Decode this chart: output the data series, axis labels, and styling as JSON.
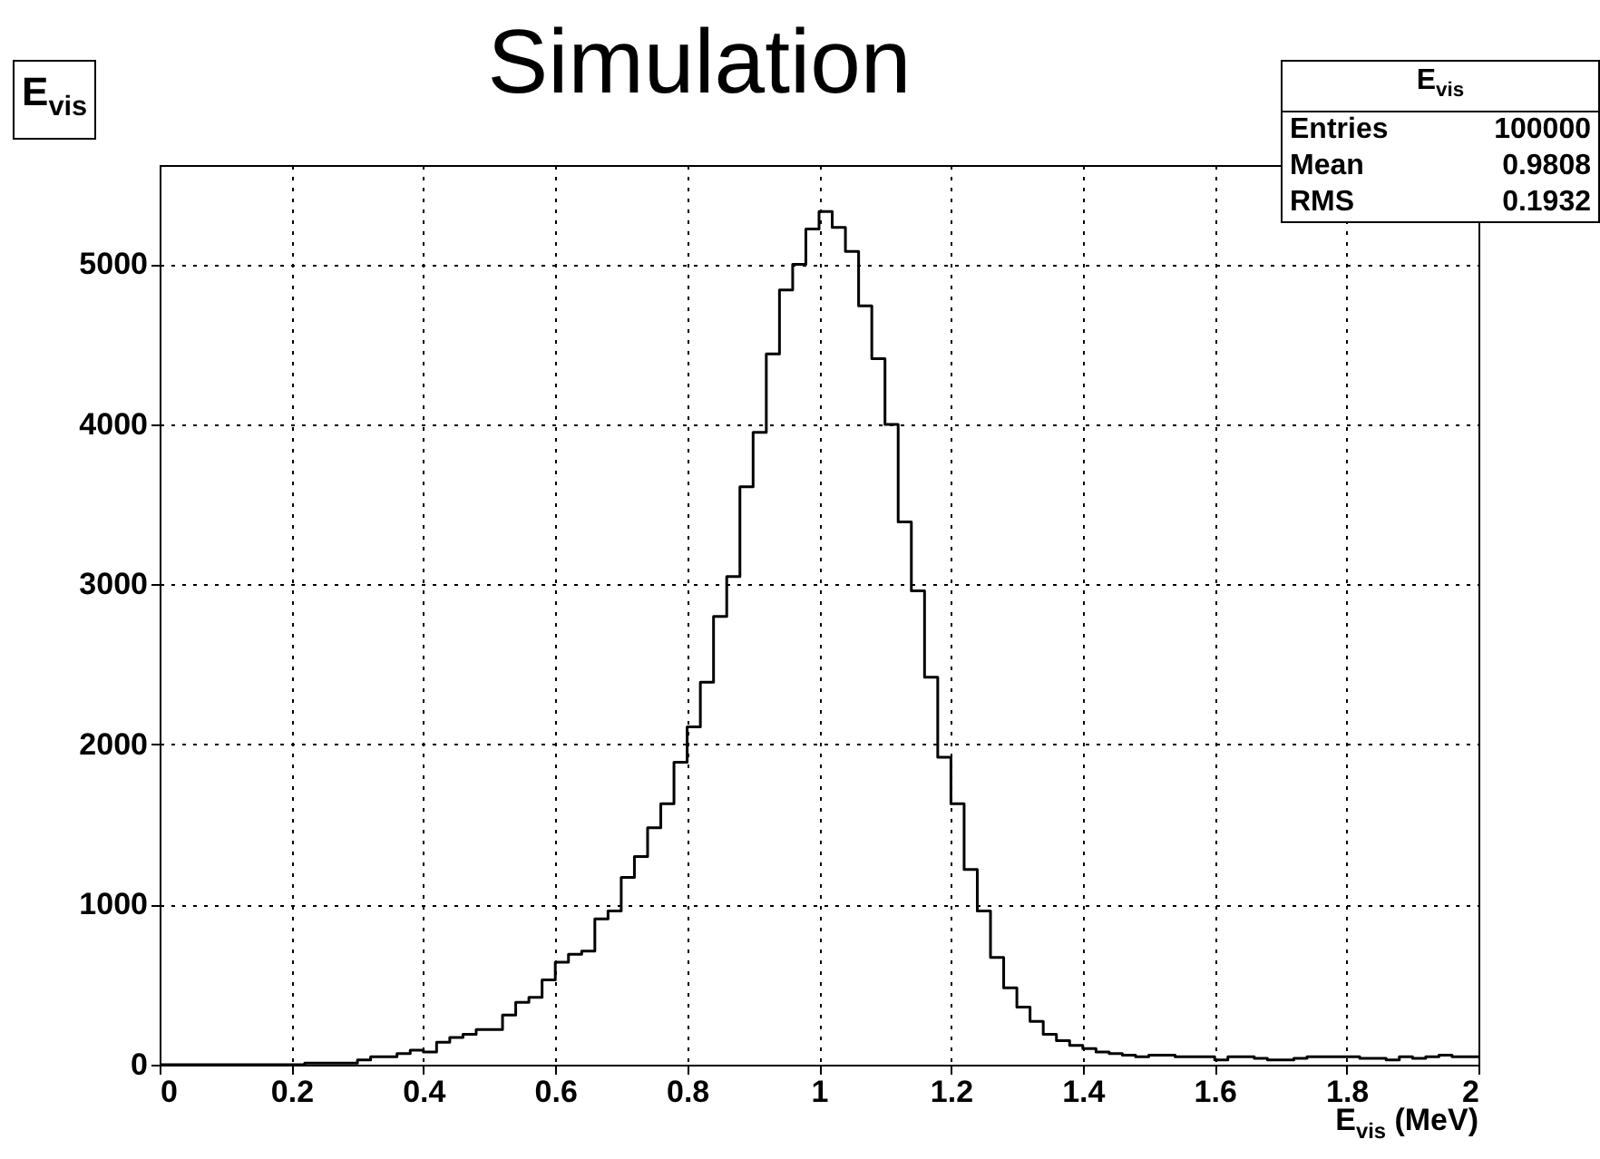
{
  "chart_data": {
    "type": "histogram",
    "title": "Simulation",
    "xlabel": "E$_{vis}$ (MeV)",
    "annotations": [
      "E$_{vis}$",
      "E$_{vis}$",
      "Entries 100000",
      "Mean 0.9808",
      "RMS 0.1932"
    ],
    "bins": [
      0,
      0.02,
      0.04,
      0.06,
      0.08,
      0.1,
      0.12,
      0.14,
      0.16,
      0.18,
      0.2,
      0.22,
      0.24,
      0.26,
      0.28,
      0.3,
      0.32,
      0.34,
      0.36,
      0.38,
      0.4,
      0.42,
      0.44,
      0.46,
      0.48,
      0.5,
      0.52,
      0.54,
      0.56,
      0.58,
      0.6,
      0.62,
      0.64,
      0.66,
      0.68,
      0.7,
      0.72,
      0.74,
      0.76,
      0.78,
      0.8,
      0.82,
      0.84,
      0.86,
      0.88,
      0.9,
      0.92,
      0.94,
      0.96,
      0.98,
      1,
      1.02,
      1.04,
      1.06,
      1.08,
      1.1,
      1.12,
      1.14,
      1.16,
      1.18,
      1.2,
      1.22,
      1.24,
      1.26,
      1.28,
      1.3,
      1.32,
      1.34,
      1.36,
      1.38,
      1.4,
      1.42,
      1.44,
      1.46,
      1.48,
      1.5,
      1.52,
      1.54,
      1.56,
      1.58,
      1.6,
      1.62,
      1.64,
      1.66,
      1.68,
      1.7,
      1.72,
      1.74,
      1.76,
      1.78,
      1.8,
      1.82,
      1.84,
      1.86,
      1.88,
      1.9,
      1.92,
      1.94,
      1.96,
      1.98,
      2
    ],
    "values": [
      0,
      0,
      0,
      0,
      0,
      0,
      0,
      0,
      0,
      0,
      0,
      10,
      10,
      10,
      10,
      30,
      50,
      50,
      70,
      90,
      80,
      140,
      170,
      190,
      220,
      220,
      310,
      390,
      420,
      530,
      640,
      690,
      710,
      910,
      960,
      1170,
      1300,
      1480,
      1630,
      1890,
      2110,
      2390,
      2800,
      3050,
      3610,
      3950,
      4440,
      4840,
      5000,
      5220,
      5330,
      5230,
      5080,
      4740,
      4410,
      4000,
      3390,
      2960,
      2420,
      1920,
      1630,
      1220,
      960,
      670,
      480,
      360,
      270,
      190,
      150,
      120,
      100,
      80,
      70,
      60,
      50,
      60,
      60,
      50,
      50,
      50,
      30,
      50,
      50,
      40,
      30,
      30,
      40,
      50,
      50,
      50,
      50,
      40,
      40,
      30,
      50,
      40,
      50,
      60,
      50,
      50
    ],
    "color": "#000000",
    "xlim": [
      0,
      2
    ],
    "xticks": [
      0,
      0.2,
      0.4,
      0.6,
      0.8,
      1,
      1.2,
      1.4,
      1.6,
      1.8,
      2
    ],
    "ylim": [
      0,
      5620
    ],
    "yticks": [
      0,
      1000,
      2000,
      3000,
      4000,
      5000
    ],
    "grid": true
  }
}
